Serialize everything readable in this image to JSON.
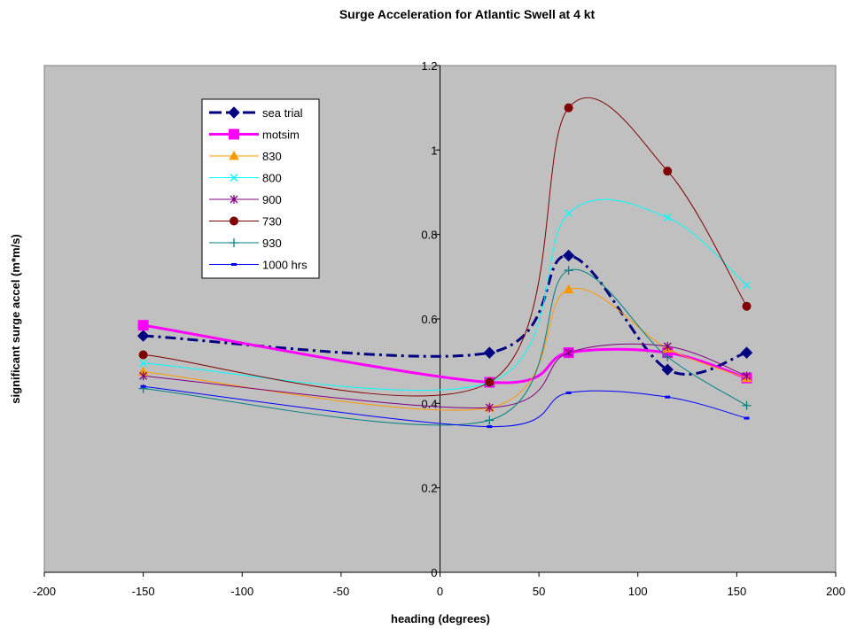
{
  "chart_data": {
    "type": "line",
    "title": "Surge Acceleration for Atlantic Swell at 4 kt",
    "xlabel": "heading (degrees)",
    "ylabel": "significant surge accel (m*m/s)",
    "xlim": [
      -200,
      200
    ],
    "ylim": [
      0,
      1.2
    ],
    "x_ticks": [
      -200,
      -150,
      -100,
      -50,
      0,
      50,
      100,
      150,
      200
    ],
    "x_tick_labels": [
      "-200",
      "-150",
      "-100",
      "-50",
      "0",
      "50",
      "100",
      "150",
      "200"
    ],
    "y_ticks": [
      0,
      0.2,
      0.4,
      0.6,
      0.8,
      1,
      1.2
    ],
    "y_tick_labels": [
      "0",
      "0.2",
      "0.4",
      "0.6",
      "0.8",
      "1",
      "1.2"
    ],
    "grid": false,
    "background_color": "#c0c0c0",
    "legend_position": "upper-left inside plot area",
    "x": [
      -150,
      25,
      65,
      115,
      155
    ],
    "series": [
      {
        "name": "sea trial",
        "values": [
          0.56,
          0.52,
          0.75,
          0.48,
          0.52
        ],
        "color": "#000080",
        "marker": "diamond",
        "dash": "dash-dot",
        "width": 3
      },
      {
        "name": "motsim",
        "values": [
          0.585,
          0.45,
          0.52,
          0.52,
          0.46
        ],
        "color": "#ff00ff",
        "marker": "square",
        "dash": "solid",
        "width": 3
      },
      {
        "name": "830",
        "values": [
          0.475,
          0.39,
          0.67,
          0.53,
          0.46
        ],
        "color": "#ff9900",
        "marker": "triangle",
        "dash": "solid",
        "width": 1
      },
      {
        "name": "800",
        "values": [
          0.495,
          0.45,
          0.85,
          0.84,
          0.68
        ],
        "color": "#00ffff",
        "marker": "x",
        "dash": "solid",
        "width": 1
      },
      {
        "name": "900",
        "values": [
          0.465,
          0.39,
          0.52,
          0.535,
          0.465
        ],
        "color": "#800080",
        "marker": "star",
        "dash": "solid",
        "width": 1
      },
      {
        "name": "730",
        "values": [
          0.515,
          0.45,
          1.1,
          0.95,
          0.63
        ],
        "color": "#800000",
        "marker": "circle",
        "dash": "solid",
        "width": 1
      },
      {
        "name": "930",
        "values": [
          0.435,
          0.36,
          0.715,
          0.51,
          0.395
        ],
        "color": "#008080",
        "marker": "plus",
        "dash": "solid",
        "width": 1
      },
      {
        "name": "1000 hrs",
        "values": [
          0.44,
          0.345,
          0.425,
          0.415,
          0.365
        ],
        "color": "#0000ff",
        "marker": "dash",
        "dash": "solid",
        "width": 1
      }
    ]
  }
}
